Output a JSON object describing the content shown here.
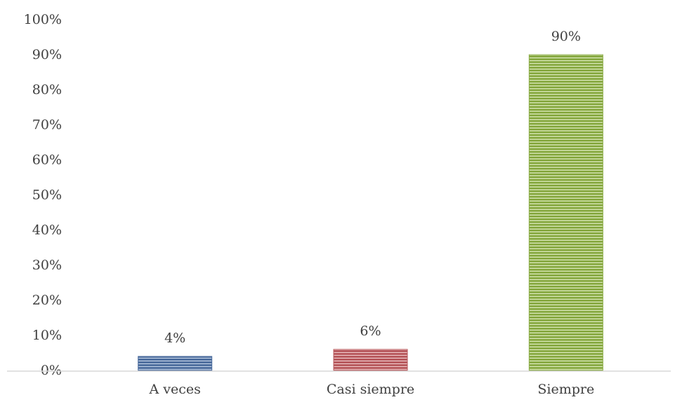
{
  "chart_data": {
    "type": "bar",
    "title": "",
    "xlabel": "",
    "ylabel": "",
    "categories": [
      "A veces",
      "Casi siempre",
      "Siempre"
    ],
    "values": [
      4,
      6,
      90
    ],
    "data_labels": [
      "4%",
      "6%",
      "90%"
    ],
    "y_ticks": [
      {
        "value": 0,
        "label": "0%"
      },
      {
        "value": 10,
        "label": "10%"
      },
      {
        "value": 20,
        "label": "20%"
      },
      {
        "value": 30,
        "label": "30%"
      },
      {
        "value": 40,
        "label": "40%"
      },
      {
        "value": 50,
        "label": "50%"
      },
      {
        "value": 60,
        "label": "60%"
      },
      {
        "value": 70,
        "label": "70%"
      },
      {
        "value": 80,
        "label": "80%"
      },
      {
        "value": 90,
        "label": "90%"
      },
      {
        "value": 100,
        "label": "100%"
      }
    ],
    "ylim": [
      0,
      100
    ],
    "grid": false,
    "legend": "none",
    "colors": [
      "#4f6f9f",
      "#b85a5e",
      "#8aab45"
    ]
  }
}
